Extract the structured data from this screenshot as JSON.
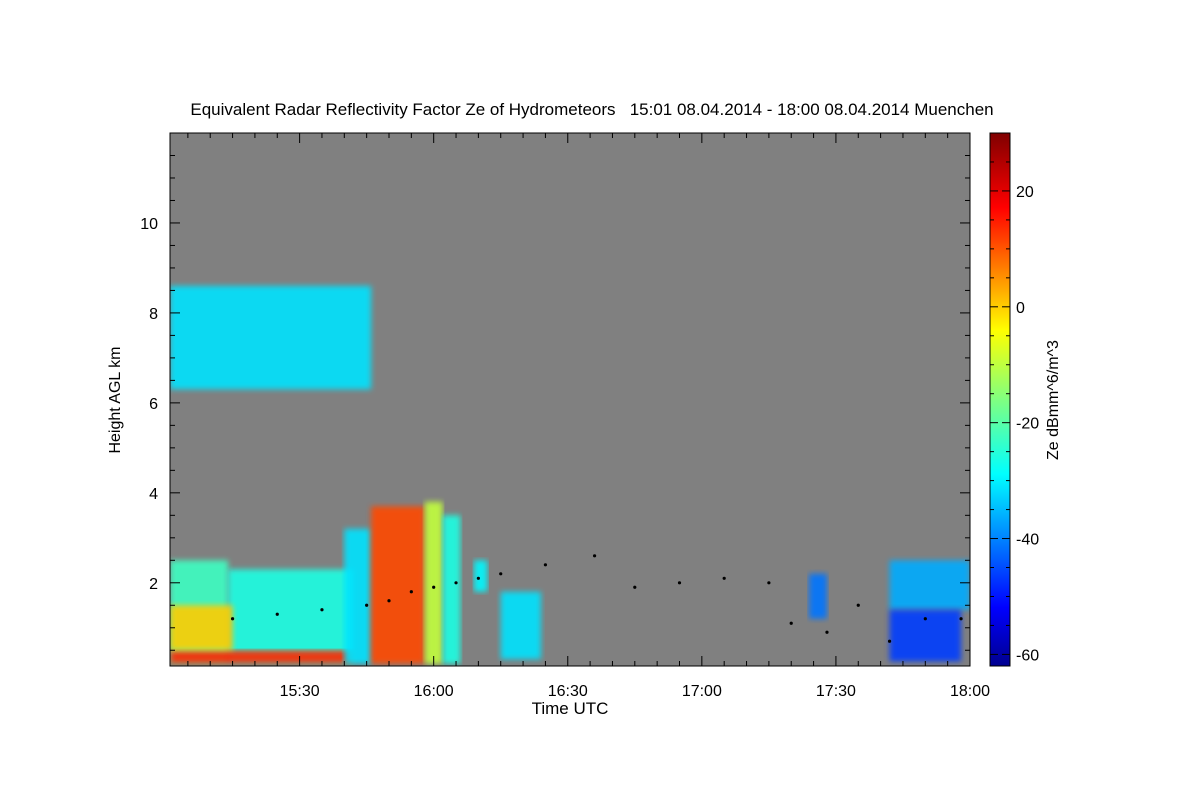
{
  "chart_data": {
    "type": "heatmap",
    "title": "Equivalent Radar Reflectivity Factor Ze of Hydrometeors   15:01 08.04.2014 - 18:00 08.04.2014 Muenchen",
    "xlabel": "Time UTC",
    "ylabel": "Height AGL km",
    "colorbar_label": "Ze dBmm^6/m^3",
    "x_range_min": [
      901,
      1080
    ],
    "x_ticks": [
      {
        "min": 930,
        "label": "15:30"
      },
      {
        "min": 960,
        "label": "16:00"
      },
      {
        "min": 990,
        "label": "16:30"
      },
      {
        "min": 1020,
        "label": "17:00"
      },
      {
        "min": 1050,
        "label": "17:30"
      },
      {
        "min": 1080,
        "label": "18:00"
      }
    ],
    "y_range_km": [
      0.15,
      12.0
    ],
    "y_ticks": [
      2,
      4,
      6,
      8,
      10
    ],
    "color_range_dbz": [
      -62,
      30
    ],
    "color_ticks": [
      -60,
      -40,
      -20,
      0,
      20
    ],
    "colormap": "jet",
    "background_color": "#808080",
    "echoes": [
      {
        "t0": 901,
        "t1": 914,
        "h0": 0.2,
        "h1": 2.5,
        "ze": -22
      },
      {
        "t0": 914,
        "t1": 942,
        "h0": 0.2,
        "h1": 2.3,
        "ze": -25
      },
      {
        "t0": 901,
        "t1": 942,
        "h0": 0.2,
        "h1": 0.5,
        "ze": 15
      },
      {
        "t0": 901,
        "t1": 915,
        "h0": 0.5,
        "h1": 1.5,
        "ze": 0
      },
      {
        "t0": 940,
        "t1": 946,
        "h0": 0.2,
        "h1": 3.2,
        "ze": -30
      },
      {
        "t0": 946,
        "t1": 958,
        "h0": 0.2,
        "h1": 3.7,
        "ze": 12
      },
      {
        "t0": 958,
        "t1": 962,
        "h0": 0.2,
        "h1": 3.8,
        "ze": -10
      },
      {
        "t0": 962,
        "t1": 966,
        "h0": 0.2,
        "h1": 3.5,
        "ze": -25
      },
      {
        "t0": 969,
        "t1": 972,
        "h0": 1.8,
        "h1": 2.5,
        "ze": -28
      },
      {
        "t0": 975,
        "t1": 984,
        "h0": 0.3,
        "h1": 1.8,
        "ze": -30
      },
      {
        "t0": 1044,
        "t1": 1048,
        "h0": 1.2,
        "h1": 2.2,
        "ze": -40
      },
      {
        "t0": 1062,
        "t1": 1080,
        "h0": 1.4,
        "h1": 2.5,
        "ze": -35
      },
      {
        "t0": 1062,
        "t1": 1078,
        "h0": 0.25,
        "h1": 1.4,
        "ze": -45
      },
      {
        "t0": 901,
        "t1": 946,
        "h0": 6.3,
        "h1": 8.6,
        "ze": -30
      }
    ],
    "cloud_base_points": [
      {
        "t": 915,
        "h": 1.2
      },
      {
        "t": 925,
        "h": 1.3
      },
      {
        "t": 935,
        "h": 1.4
      },
      {
        "t": 945,
        "h": 1.5
      },
      {
        "t": 950,
        "h": 1.6
      },
      {
        "t": 955,
        "h": 1.8
      },
      {
        "t": 960,
        "h": 1.9
      },
      {
        "t": 965,
        "h": 2.0
      },
      {
        "t": 970,
        "h": 2.1
      },
      {
        "t": 975,
        "h": 2.2
      },
      {
        "t": 985,
        "h": 2.4
      },
      {
        "t": 996,
        "h": 2.6
      },
      {
        "t": 1005,
        "h": 1.9
      },
      {
        "t": 1015,
        "h": 2.0
      },
      {
        "t": 1025,
        "h": 2.1
      },
      {
        "t": 1035,
        "h": 2.0
      },
      {
        "t": 1040,
        "h": 1.1
      },
      {
        "t": 1048,
        "h": 0.9
      },
      {
        "t": 1055,
        "h": 1.5
      },
      {
        "t": 1062,
        "h": 0.7
      },
      {
        "t": 1070,
        "h": 1.2
      },
      {
        "t": 1078,
        "h": 1.2
      }
    ]
  }
}
